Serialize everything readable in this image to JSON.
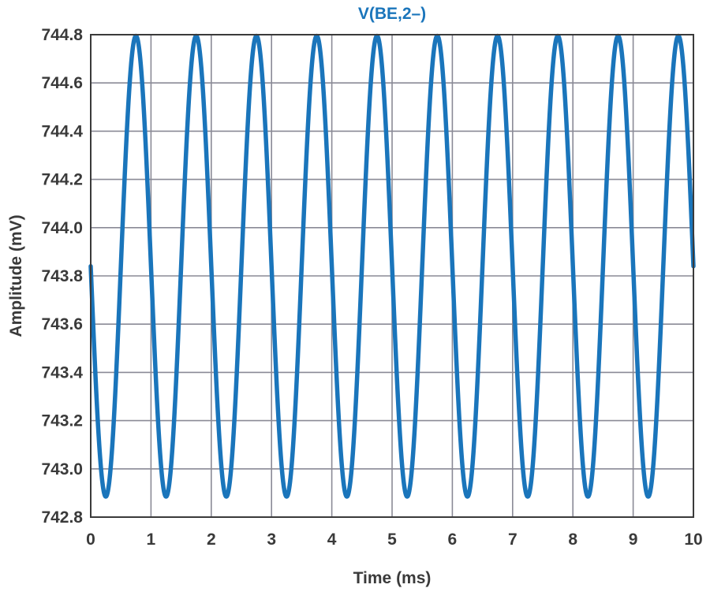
{
  "chart_data": {
    "type": "line",
    "title": "",
    "xlabel": "Time (ms)",
    "ylabel": "Amplitude (mV)",
    "xlim": [
      0,
      10
    ],
    "ylim": [
      742.8,
      744.8
    ],
    "x_ticks": [
      "0",
      "1",
      "2",
      "3",
      "4",
      "5",
      "6",
      "7",
      "8",
      "9",
      "10"
    ],
    "y_ticks": [
      "742.8",
      "743.0",
      "743.2",
      "743.4",
      "743.6",
      "743.8",
      "744.0",
      "744.2",
      "744.4",
      "744.6",
      "744.8"
    ],
    "grid": true,
    "legend": "top-center",
    "series": [
      {
        "name": "V(BE,2–)",
        "color": "#1a75bb",
        "model": "sine",
        "frequency_khz": 1.0,
        "offset_mv": 743.84,
        "amplitude_mv": 0.955,
        "start_value_mv": 743.84,
        "initial_direction": "falling",
        "max_mv": 744.8,
        "min_mv": 742.885,
        "x": [
          0,
          0.25,
          0.5,
          0.75,
          1.0,
          1.25,
          1.5,
          1.75,
          2.0,
          2.25,
          2.5,
          2.75,
          3.0,
          3.25,
          3.5,
          3.75,
          4.0,
          4.25,
          4.5,
          4.75,
          5.0,
          5.25,
          5.5,
          5.75,
          6.0,
          6.25,
          6.5,
          6.75,
          7.0,
          7.25,
          7.5,
          7.75,
          8.0,
          8.25,
          8.5,
          8.75,
          9.0,
          9.25,
          9.5,
          9.75,
          10.0
        ],
        "y": [
          743.84,
          742.885,
          743.84,
          744.8,
          743.84,
          742.885,
          743.84,
          744.8,
          743.84,
          742.885,
          743.84,
          744.8,
          743.84,
          742.885,
          743.84,
          744.8,
          743.84,
          742.885,
          743.84,
          744.8,
          743.84,
          742.885,
          743.84,
          744.8,
          743.84,
          742.885,
          743.84,
          744.8,
          743.84,
          742.885,
          743.84,
          744.8,
          743.84,
          742.885,
          743.84,
          744.8,
          743.84,
          742.885,
          743.84,
          744.8,
          743.84
        ]
      }
    ]
  }
}
